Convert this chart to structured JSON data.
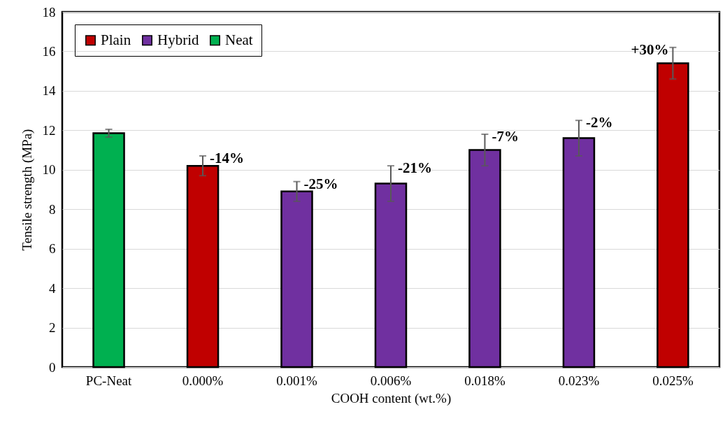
{
  "chart_data": {
    "type": "bar",
    "xlabel": "COOH content (wt.%)",
    "ylabel": "Tensile strength (MPa)",
    "categories": [
      "PC-Neat",
      "0.000%",
      "0.001%",
      "0.006%",
      "0.018%",
      "0.023%",
      "0.025%"
    ],
    "series": [
      {
        "name": "Plain",
        "color": "#c00000",
        "values": [
          null,
          10.2,
          null,
          null,
          null,
          null,
          15.4
        ],
        "errors": [
          null,
          0.5,
          null,
          null,
          null,
          null,
          0.8
        ]
      },
      {
        "name": "Hybrid",
        "color": "#7030a0",
        "values": [
          null,
          null,
          8.9,
          9.3,
          11.0,
          11.6,
          null
        ],
        "errors": [
          null,
          null,
          0.5,
          0.9,
          0.8,
          0.9,
          null
        ]
      },
      {
        "name": "Neat",
        "color": "#00b050",
        "values": [
          11.85,
          null,
          null,
          null,
          null,
          null,
          null
        ],
        "errors": [
          0.2,
          null,
          null,
          null,
          null,
          null,
          null
        ]
      }
    ],
    "value_labels": [
      null,
      "-14%",
      "-25%",
      "-21%",
      "-7%",
      "-2%",
      "+30%"
    ],
    "ylim": [
      0,
      18
    ],
    "yticks": [
      0,
      2,
      4,
      6,
      8,
      10,
      12,
      14,
      16,
      18
    ],
    "grid": "y",
    "legend": "top left"
  }
}
